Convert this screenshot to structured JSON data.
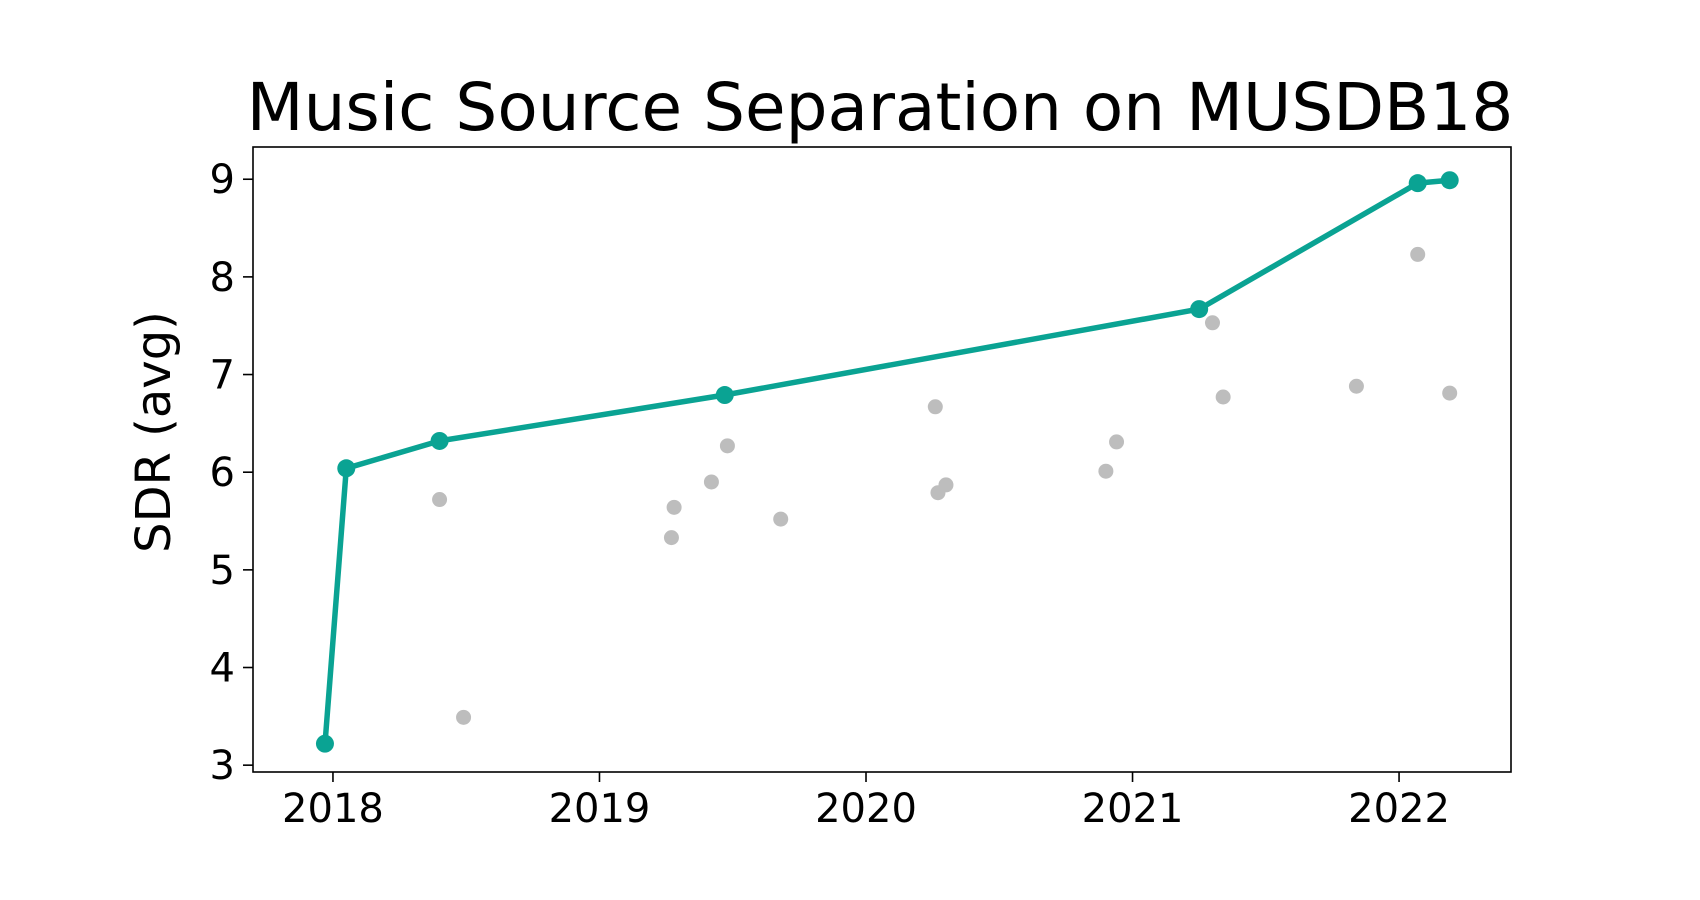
{
  "chart_data": {
    "type": "line",
    "title": "Music Source Separation on MUSDB18",
    "xlabel": "",
    "ylabel": "SDR (avg)",
    "x_ticks": [
      "2018",
      "2019",
      "2020",
      "2021",
      "2022"
    ],
    "y_ticks": [
      "3",
      "4",
      "5",
      "6",
      "7",
      "8",
      "9"
    ],
    "xlim": [
      2017.7,
      2022.42
    ],
    "ylim": [
      2.93,
      9.33
    ],
    "grid": false,
    "colors": {
      "state_of_the_art": "#0aa393",
      "other": "#bdbdbd"
    },
    "series": [
      {
        "kind": "line-with-markers",
        "x": [
          2017.97,
          2018.05,
          2018.4,
          2019.47,
          2021.25,
          2022.07,
          2022.19
        ],
        "y": [
          3.22,
          6.04,
          6.32,
          6.79,
          7.67,
          8.96,
          8.99
        ]
      },
      {
        "kind": "scatter",
        "x": [
          2018.4,
          2018.49,
          2019.27,
          2019.28,
          2019.42,
          2019.48,
          2019.68,
          2020.26,
          2020.27,
          2020.3,
          2020.9,
          2020.94,
          2021.3,
          2021.34,
          2021.84,
          2022.07,
          2022.19
        ],
        "y": [
          5.72,
          3.49,
          5.33,
          5.64,
          5.9,
          6.27,
          5.52,
          6.67,
          5.79,
          5.87,
          6.01,
          6.31,
          7.53,
          6.77,
          6.88,
          8.23,
          6.81
        ]
      }
    ]
  }
}
